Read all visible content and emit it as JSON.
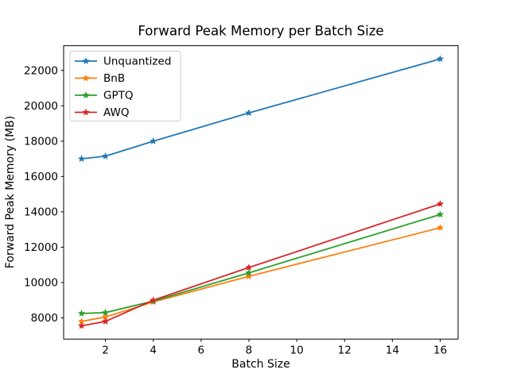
{
  "figure": {
    "background": "#ffffff",
    "axes_edge_color": "#000000",
    "legend_border_color": "#cccccc"
  },
  "chart_data": {
    "type": "line",
    "title": "Forward Peak Memory per Batch Size",
    "xlabel": "Batch Size",
    "ylabel": "Forward Peak Memory (MB)",
    "x": [
      1,
      2,
      4,
      8,
      16
    ],
    "series": [
      {
        "name": "Unquantized",
        "color": "#1f77b4",
        "values": [
          17000,
          17150,
          18000,
          19600,
          22650
        ]
      },
      {
        "name": "BnB",
        "color": "#ff7f0e",
        "values": [
          7800,
          8050,
          8900,
          10350,
          13100
        ]
      },
      {
        "name": "GPTQ",
        "color": "#2ca02c",
        "values": [
          8250,
          8300,
          8950,
          10550,
          13850
        ]
      },
      {
        "name": "AWQ",
        "color": "#d62728",
        "values": [
          7550,
          7800,
          9000,
          10850,
          14450
        ]
      }
    ],
    "marker": "star",
    "xticks": [
      2,
      4,
      6,
      8,
      10,
      12,
      14,
      16
    ],
    "yticks": [
      8000,
      10000,
      12000,
      14000,
      16000,
      18000,
      20000,
      22000
    ],
    "xlim": [
      0.25,
      16.75
    ],
    "ylim": [
      6800,
      23400
    ],
    "grid": false,
    "legend_position": "upper left"
  }
}
